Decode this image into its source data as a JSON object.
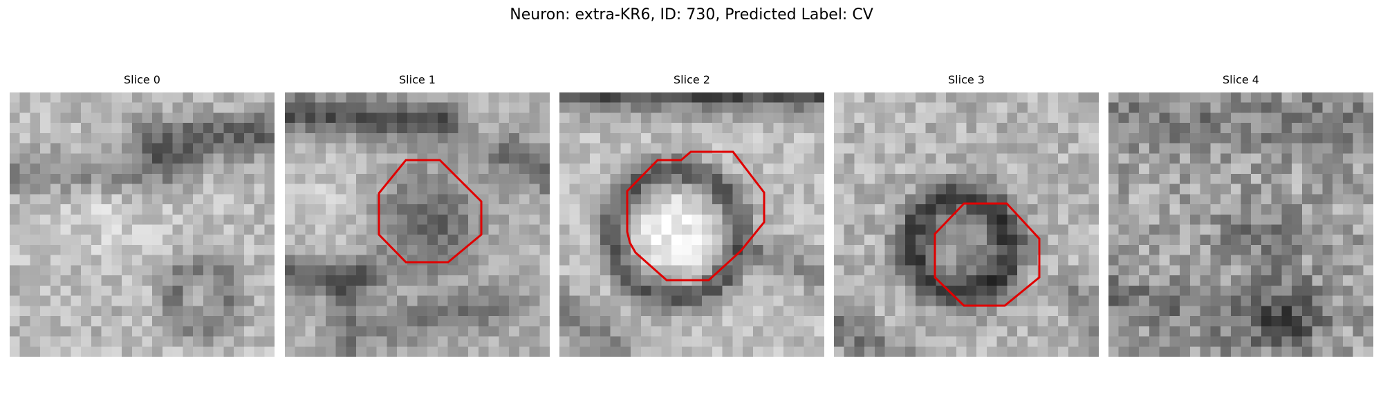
{
  "figure": {
    "title": "Neuron: extra-KR6, ID: 730, Predicted Label: CV"
  },
  "colors": {
    "background": "#ffffff",
    "outline": "#e00000",
    "colormap": "grayscale"
  },
  "panels": [
    {
      "title": "Slice 0",
      "outline": false
    },
    {
      "title": "Slice 1",
      "outline": true
    },
    {
      "title": "Slice 2",
      "outline": true
    },
    {
      "title": "Slice 3",
      "outline": true
    },
    {
      "title": "Slice 4",
      "outline": false
    }
  ]
}
